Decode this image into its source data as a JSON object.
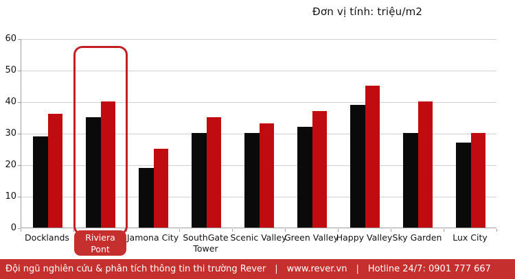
{
  "title": "Đơn vị tính: triệu/m2",
  "chart_data": {
    "type": "bar",
    "title": "Đơn vị tính: triệu/m2",
    "categories": [
      "Docklands",
      "Riviera Pont",
      "Jamona City",
      "SouthGate Tower",
      "Scenic Valley",
      "Green Valley",
      "Happy Valley",
      "Sky Garden",
      "Lux City"
    ],
    "series": [
      {
        "name": "series-black",
        "color": "#0a0a0a",
        "values": [
          29,
          35,
          19,
          30,
          30,
          32,
          39,
          30,
          27
        ]
      },
      {
        "name": "series-red",
        "color": "#c00b10",
        "values": [
          36,
          40,
          25,
          35,
          33,
          37,
          45,
          40,
          30
        ]
      }
    ],
    "ylim": [
      0,
      60
    ],
    "yticks": [
      0,
      10,
      20,
      30,
      40,
      50,
      60
    ],
    "grid": "horizontal",
    "legend_position": "none",
    "highlight": {
      "category": "Riviera Pont",
      "label_lines": [
        "Riviera",
        "Pont"
      ],
      "outline_color": "#c21f24",
      "pill_color": "#c5302f",
      "pill_text_color": "#ffffff"
    }
  },
  "footer": {
    "research_text": "Đội ngũ nghiên cứu & phân tích thông tin thi trường Rever",
    "separator": "|",
    "website": "www.rever.vn",
    "hotline": "Hotline 24/7: 0901 777 667",
    "bg_color": "#c5302f",
    "text_color": "#ffffff"
  },
  "colors": {
    "background": "#ffffff",
    "gridline": "#cfcfcf",
    "axis": "#9e9e9e",
    "text": "#111111"
  }
}
